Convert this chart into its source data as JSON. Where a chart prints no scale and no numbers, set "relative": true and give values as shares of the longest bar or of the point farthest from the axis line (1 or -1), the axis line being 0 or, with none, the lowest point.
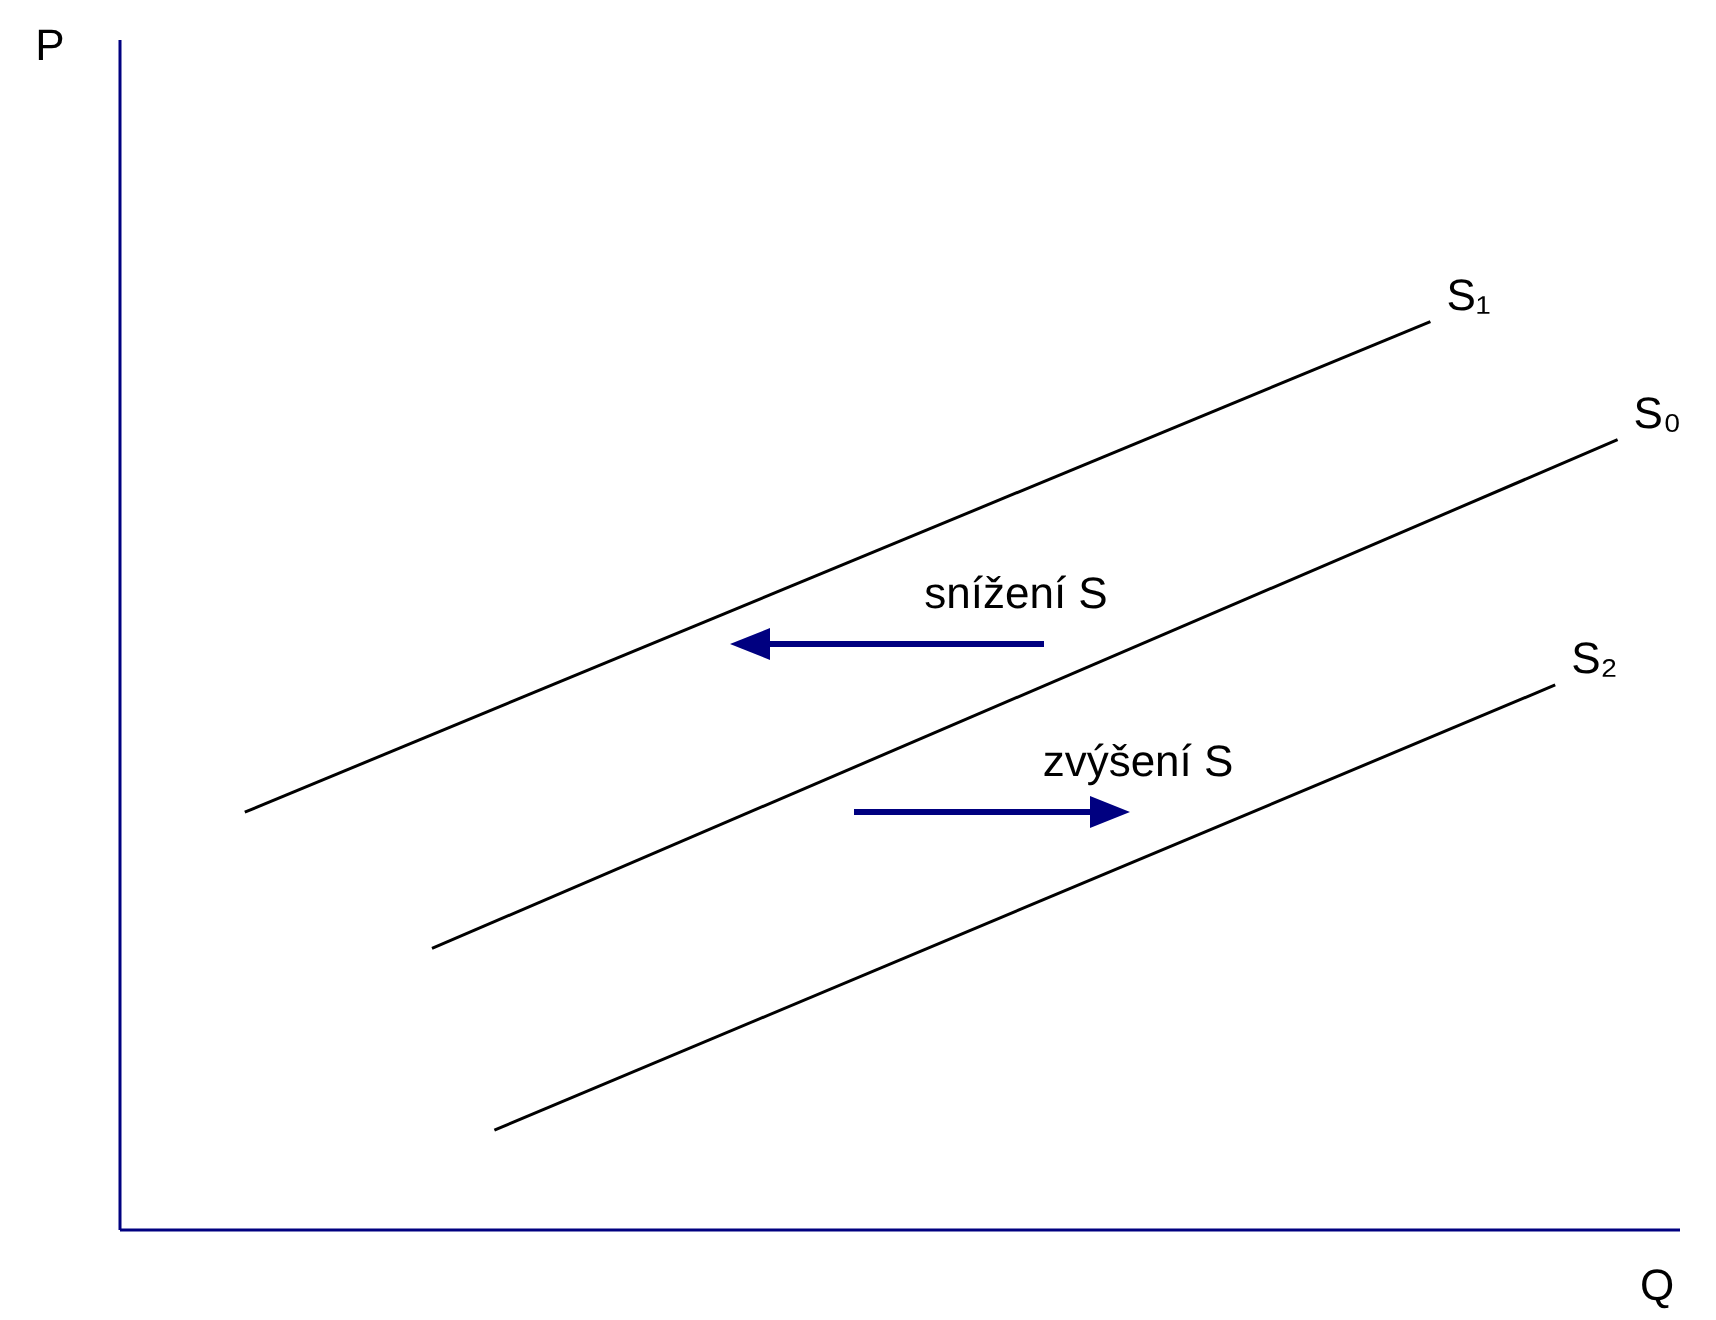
{
  "chart_data": {
    "type": "line",
    "relative": true,
    "xlabel": "Q",
    "marker": "none",
    "line_style": "solid",
    "categories": [
      null,
      null,
      null,
      null,
      null,
      null,
      null,
      null,
      null,
      null,
      null,
      null,
      null,
      null,
      null,
      null,
      null,
      null,
      null,
      null,
      null,
      null,
      null,
      null,
      null,
      null
    ],
    "series": [
      {
        "name": "S₁",
        "color": "#000000",
        "values": [
          null,
          null,
          0.46,
          null,
          null,
          null,
          null,
          null,
          null,
          null,
          null,
          null,
          null,
          null,
          null,
          null,
          null,
          null,
          null,
          null,
          null,
          1.0,
          null,
          null,
          null,
          null
        ]
      },
      {
        "name": "S₀",
        "color": "#000000",
        "values": [
          null,
          null,
          null,
          null,
          null,
          0.31,
          null,
          null,
          null,
          null,
          null,
          null,
          null,
          null,
          null,
          null,
          null,
          null,
          null,
          null,
          null,
          null,
          null,
          null,
          0.87,
          null
        ]
      },
      {
        "name": "S₂",
        "color": "#000000",
        "values": [
          null,
          null,
          null,
          null,
          null,
          null,
          0.11,
          null,
          null,
          null,
          null,
          null,
          null,
          null,
          null,
          null,
          null,
          null,
          null,
          null,
          null,
          null,
          null,
          0.6,
          null,
          null
        ]
      }
    ],
    "annotations": [
      "snížení S",
      "zvýšení S",
      "P"
    ]
  }
}
